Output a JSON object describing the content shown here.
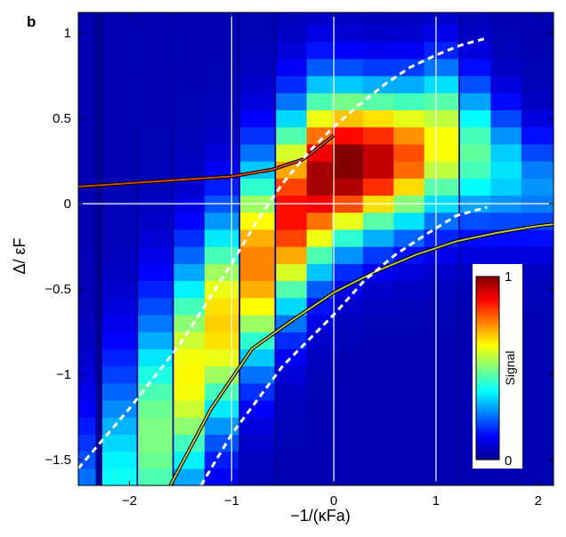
{
  "panel_label": "b",
  "colors": {
    "colormap": "jet",
    "guide_lines": "#ffffff",
    "dashed_curves": "#ffffff",
    "upper_branch": "#e04a14",
    "lower_branch": "#c8d24a"
  },
  "chart_data": {
    "type": "heatmap",
    "title": "",
    "xlabel": "−1/(κFa)",
    "ylabel": "Δ/ εF",
    "xlim": [
      -2.5,
      2.15
    ],
    "ylim": [
      -1.65,
      1.12
    ],
    "x_ticks": [
      -2,
      -1,
      0,
      1,
      2
    ],
    "x_tick_labels": [
      "−2",
      "−1",
      "0",
      "1",
      "2"
    ],
    "y_ticks": [
      -1.5,
      -1,
      -0.5,
      0,
      0.5,
      1
    ],
    "y_tick_labels": [
      "−1.5",
      "−1",
      "−0.5",
      "0",
      "0.5",
      "1"
    ],
    "grid": false,
    "reference_lines": {
      "x": [
        -1,
        0,
        1
      ],
      "y": [
        0
      ]
    },
    "colorbar": {
      "label": "Signal",
      "min": 0,
      "max": 1,
      "min_label": "0",
      "max_label": "1",
      "placement": "lower-right"
    },
    "columns_x": [
      -2.5,
      -2.1,
      -1.75,
      -1.4,
      -1.1,
      -0.75,
      -0.4,
      -0.1,
      0.15,
      0.45,
      0.75,
      1.05,
      1.4,
      1.7,
      2.0
    ],
    "column_width": 0.33,
    "row_height": 0.1,
    "ridge": [
      {
        "x": -2.5,
        "center": -2.1,
        "width": 0.55,
        "amp": 0.28
      },
      {
        "x": -2.1,
        "center": -1.75,
        "width": 0.55,
        "amp": 0.35
      },
      {
        "x": -1.75,
        "center": -1.35,
        "width": 0.5,
        "amp": 0.45
      },
      {
        "x": -1.4,
        "center": -1.0,
        "width": 0.45,
        "amp": 0.58
      },
      {
        "x": -1.1,
        "center": -0.7,
        "width": 0.42,
        "amp": 0.62
      },
      {
        "x": -0.75,
        "center": -0.35,
        "width": 0.4,
        "amp": 0.7
      },
      {
        "x": -0.4,
        "center": -0.05,
        "width": 0.38,
        "amp": 0.82
      },
      {
        "x": -0.1,
        "center": 0.15,
        "width": 0.35,
        "amp": 0.92
      },
      {
        "x": 0.15,
        "center": 0.22,
        "width": 0.3,
        "amp": 0.98
      },
      {
        "x": 0.45,
        "center": 0.25,
        "width": 0.28,
        "amp": 0.9
      },
      {
        "x": 0.75,
        "center": 0.28,
        "width": 0.28,
        "amp": 0.75
      },
      {
        "x": 1.05,
        "center": 0.35,
        "width": 0.3,
        "amp": 0.58
      },
      {
        "x": 1.4,
        "center": 0.3,
        "width": 0.28,
        "amp": 0.42
      },
      {
        "x": 1.7,
        "center": 0.2,
        "width": 0.25,
        "amp": 0.3
      },
      {
        "x": 2.0,
        "center": 0.1,
        "width": 0.22,
        "amp": 0.22
      }
    ],
    "series": [
      {
        "style": "solid-dark-red",
        "x": [
          -2.5,
          -2.0,
          -1.5,
          -1.0,
          -0.6,
          -0.3,
          0.0
        ],
        "y": [
          0.1,
          0.12,
          0.14,
          0.16,
          0.2,
          0.26,
          0.4
        ]
      },
      {
        "style": "solid-green",
        "x": [
          -1.6,
          -1.2,
          -0.8,
          -0.4,
          0.0,
          0.4,
          0.8,
          1.2,
          1.6,
          2.0,
          2.15
        ],
        "y": [
          -1.65,
          -1.2,
          -0.85,
          -0.68,
          -0.52,
          -0.4,
          -0.3,
          -0.22,
          -0.17,
          -0.13,
          -0.12
        ]
      },
      {
        "style": "dashed-white",
        "x": [
          -2.5,
          -2.0,
          -1.5,
          -1.0,
          -0.75,
          -0.5,
          -0.25,
          0.0,
          0.25,
          0.5,
          0.75,
          1.0,
          1.25,
          1.5
        ],
        "y": [
          -1.55,
          -1.2,
          -0.82,
          -0.35,
          -0.1,
          0.12,
          0.3,
          0.45,
          0.58,
          0.7,
          0.8,
          0.87,
          0.93,
          0.97
        ]
      },
      {
        "style": "dashed-white",
        "x": [
          -1.3,
          -1.0,
          -0.5,
          0.0,
          0.3,
          0.6,
          0.9,
          1.2,
          1.5
        ],
        "y": [
          -1.65,
          -1.35,
          -0.95,
          -0.65,
          -0.45,
          -0.3,
          -0.18,
          -0.07,
          -0.02
        ]
      }
    ]
  }
}
